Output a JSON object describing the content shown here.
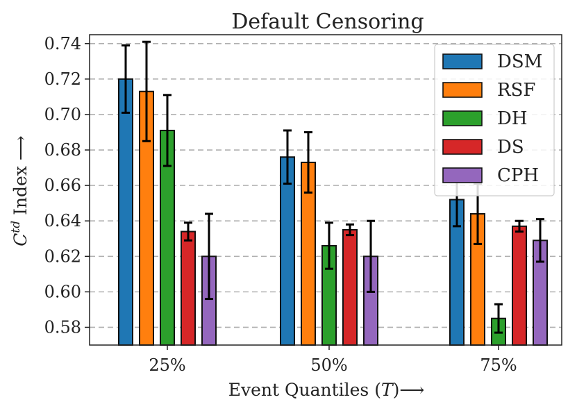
{
  "chart_data": {
    "type": "bar",
    "title": "Default Censoring",
    "xlabel": "Event Quantiles (T)⟶",
    "ylabel": "C^td Index ⟶",
    "ylim": [
      0.57,
      0.745
    ],
    "yticks": [
      0.58,
      0.6,
      0.62,
      0.64,
      0.66,
      0.68,
      0.7,
      0.72,
      0.74
    ],
    "ytick_labels": [
      "0.58",
      "0.60",
      "0.62",
      "0.64",
      "0.66",
      "0.68",
      "0.70",
      "0.72",
      "0.74"
    ],
    "categories": [
      "25%",
      "50%",
      "75%"
    ],
    "grid": true,
    "legend_position": "top-right",
    "series": [
      {
        "name": "DSM",
        "color": "#1f77b4",
        "values": [
          0.72,
          0.676,
          0.652
        ],
        "err": [
          0.019,
          0.015,
          0.015
        ]
      },
      {
        "name": "RSF",
        "color": "#ff7f0e",
        "values": [
          0.713,
          0.673,
          0.644
        ],
        "err": [
          0.028,
          0.017,
          0.017
        ]
      },
      {
        "name": "DH",
        "color": "#2ca02c",
        "values": [
          0.691,
          0.626,
          0.585
        ],
        "err": [
          0.02,
          0.013,
          0.008
        ]
      },
      {
        "name": "DS",
        "color": "#d62728",
        "values": [
          0.634,
          0.635,
          0.637
        ],
        "err": [
          0.005,
          0.003,
          0.003
        ]
      },
      {
        "name": "CPH",
        "color": "#9467bd",
        "values": [
          0.62,
          0.62,
          0.629
        ],
        "err": [
          0.024,
          0.02,
          0.012
        ]
      }
    ]
  }
}
